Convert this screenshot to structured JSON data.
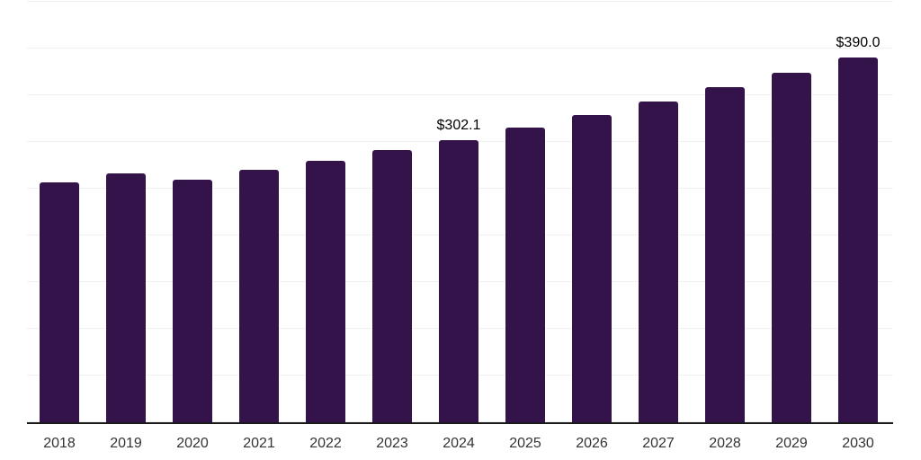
{
  "chart_data": {
    "type": "bar",
    "title": "",
    "xlabel": "",
    "ylabel": "",
    "categories": [
      "2018",
      "2019",
      "2020",
      "2021",
      "2022",
      "2023",
      "2024",
      "2025",
      "2026",
      "2027",
      "2028",
      "2029",
      "2030"
    ],
    "values": [
      256.5,
      266.6,
      259.3,
      269.9,
      279.5,
      291.0,
      302.1,
      315.2,
      329.0,
      343.2,
      358.2,
      373.8,
      390.0
    ],
    "data_labels": [
      "",
      "",
      "",
      "",
      "",
      "",
      "$302.1",
      "",
      "",
      "",
      "",
      "",
      "$390.0"
    ],
    "ylim": [
      0,
      450
    ],
    "gridline_step": 50,
    "grid": true,
    "legend": false,
    "colors": {
      "bar": "#331349",
      "gridline": "#f0f0f0",
      "axis": "#1a1a1a",
      "tick_label": "#333333",
      "data_label": "#000000",
      "background": "#ffffff"
    }
  }
}
